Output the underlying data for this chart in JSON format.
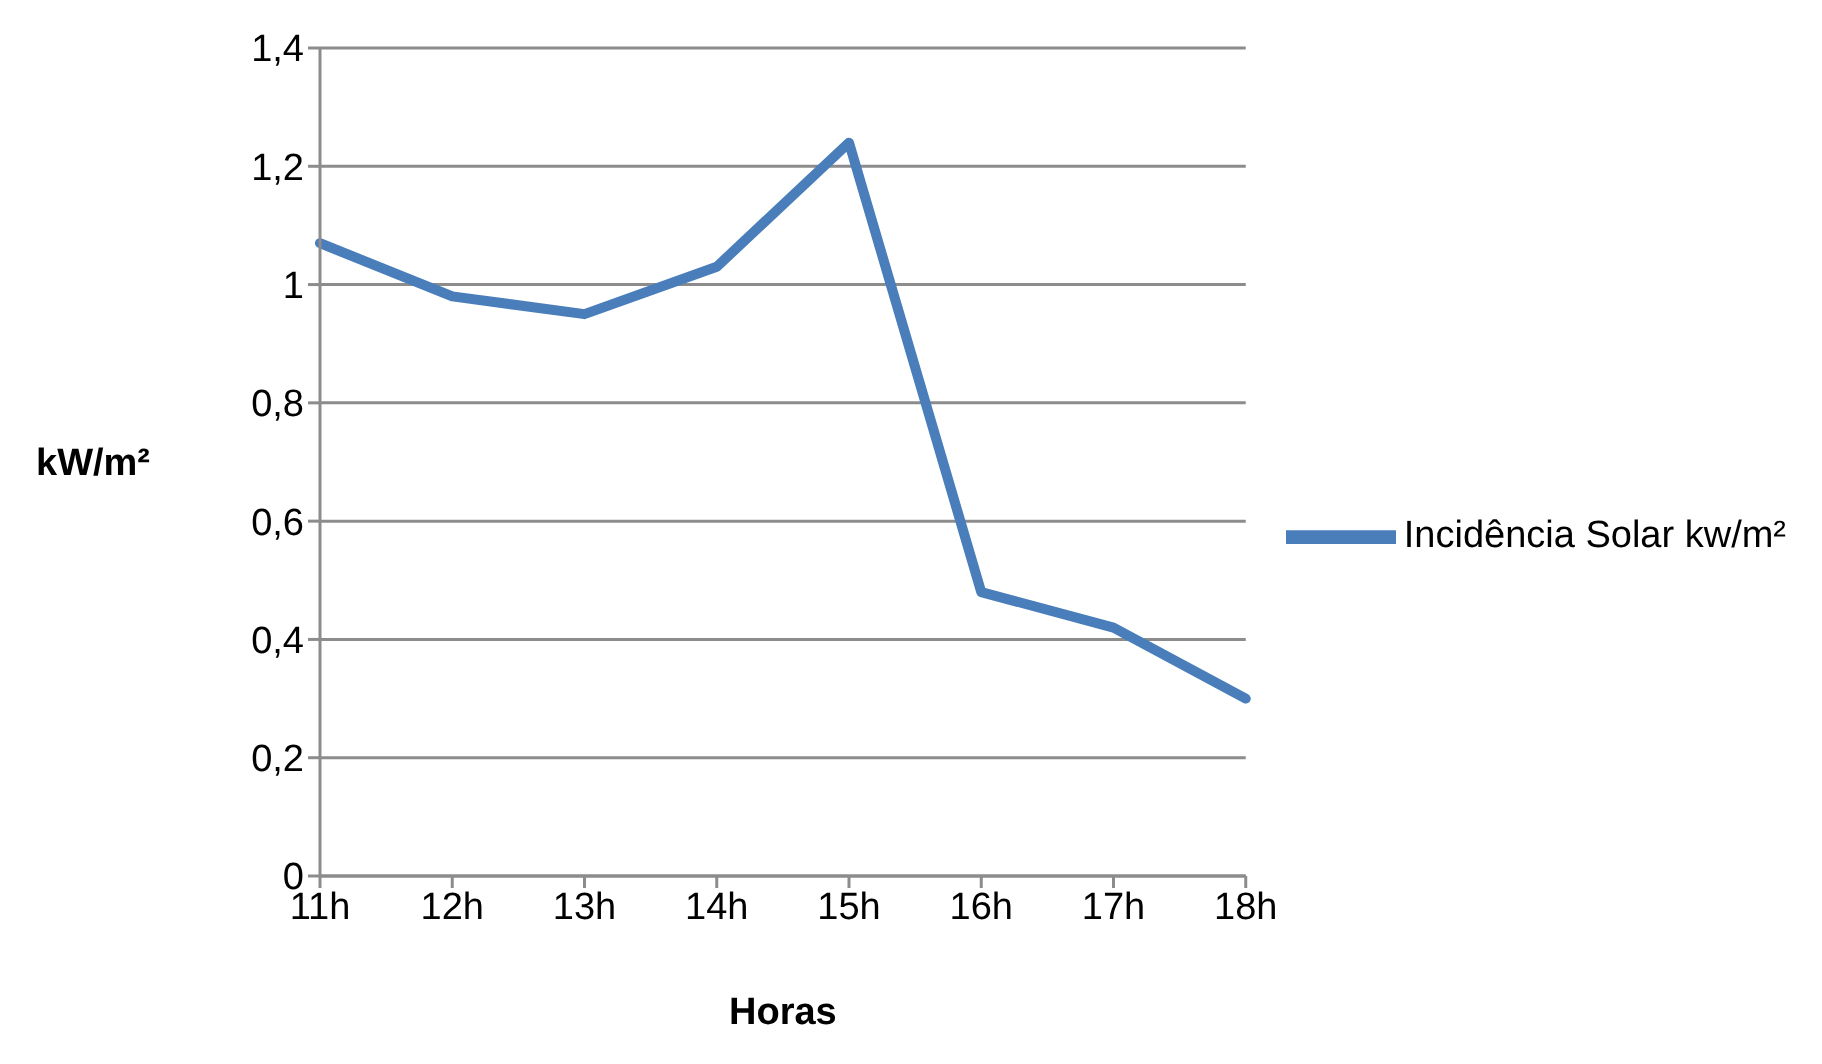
{
  "chart_data": {
    "type": "line",
    "xlabel": "Horas",
    "ylabel": "kW/m²",
    "categories": [
      "11h",
      "12h",
      "13h",
      "14h",
      "15h",
      "16h",
      "17h",
      "18h"
    ],
    "series": [
      {
        "name": "Incidência Solar kw/m²",
        "color": "#4a7ebb",
        "values": [
          1.07,
          0.98,
          0.95,
          1.03,
          1.24,
          0.48,
          0.42,
          0.3
        ]
      }
    ],
    "ylim": [
      0,
      1.4
    ],
    "yticks": [
      0,
      {
        "value": 0.2,
        "label": "0,2"
      },
      {
        "value": 0.4,
        "label": "0,4"
      },
      {
        "value": 0.6,
        "label": "0,6"
      },
      {
        "value": 0.8,
        "label": "0,8"
      },
      1,
      {
        "value": 1.2,
        "label": "1,2"
      },
      {
        "value": 1.4,
        "label": "1,4"
      }
    ],
    "grid": "y",
    "legend": "right",
    "marker": "none",
    "line_style": "solid"
  }
}
